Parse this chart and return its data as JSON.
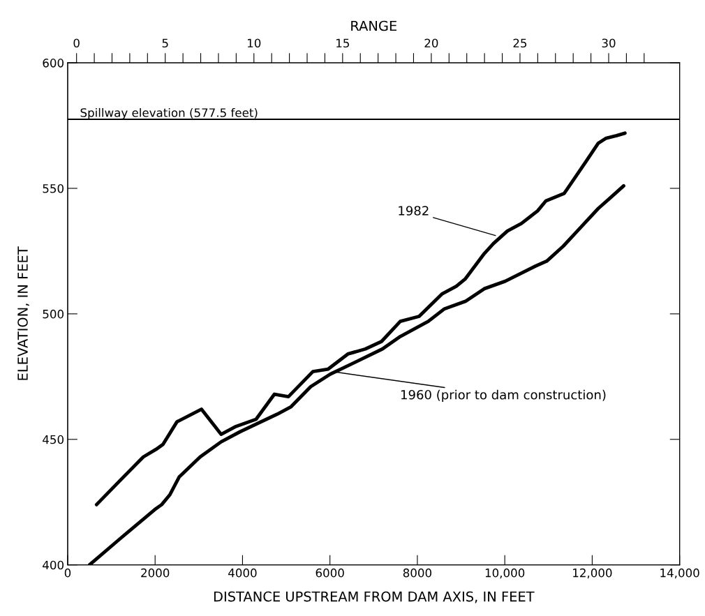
{
  "chart_data": {
    "type": "line",
    "xlabel": "DISTANCE UPSTREAM FROM DAM AXIS, IN FEET",
    "ylabel": "ELEVATION, IN FEET",
    "x2label": "RANGE",
    "xlim": [
      0,
      14000
    ],
    "ylim": [
      400,
      600
    ],
    "xticks": [
      0,
      2000,
      4000,
      6000,
      8000,
      {
        "value": 10000,
        "label": "10,000"
      },
      {
        "value": 12000,
        "label": "12,000"
      },
      {
        "value": 14000,
        "label": "14,000"
      }
    ],
    "yticks": [
      400,
      450,
      500,
      550,
      600
    ],
    "x2lim": [
      -0.5,
      34
    ],
    "x2ticks": [
      0,
      {
        "value": 1,
        "label": null
      },
      {
        "value": 2,
        "label": null
      },
      {
        "value": 3,
        "label": null
      },
      {
        "value": 4,
        "label": null
      },
      5,
      {
        "value": 6,
        "label": null
      },
      {
        "value": 7,
        "label": null
      },
      {
        "value": 8,
        "label": null
      },
      {
        "value": 9,
        "label": null
      },
      10,
      {
        "value": 11,
        "label": null
      },
      {
        "value": 12,
        "label": null
      },
      {
        "value": 13,
        "label": null
      },
      {
        "value": 14,
        "label": null
      },
      15,
      {
        "value": 16,
        "label": null
      },
      {
        "value": 17,
        "label": null
      },
      {
        "value": 18,
        "label": null
      },
      {
        "value": 19,
        "label": null
      },
      20,
      {
        "value": 21,
        "label": null
      },
      {
        "value": 22,
        "label": null
      },
      {
        "value": 23,
        "label": null
      },
      {
        "value": 24,
        "label": null
      },
      25,
      {
        "value": 26,
        "label": null
      },
      {
        "value": 27,
        "label": null
      },
      {
        "value": 28,
        "label": null
      },
      {
        "value": 29,
        "label": null
      },
      30,
      {
        "value": 31,
        "label": null
      },
      {
        "value": 32,
        "label": null
      }
    ],
    "series": [
      {
        "color": "#000000",
        "x": [
          660,
          1220,
          1730,
          2020,
          2180,
          2500,
          3060,
          3510,
          3830,
          4310,
          4730,
          5050,
          5610,
          5960,
          6410,
          6810,
          7180,
          7610,
          8040,
          8570,
          8890,
          9100,
          9530,
          9740,
          10060,
          10380,
          10750,
          10940,
          11360,
          11440,
          11870,
          12140,
          12320,
          12560,
          12750
        ],
        "values": [
          424,
          434,
          443,
          446,
          448,
          457,
          462,
          452,
          455,
          458,
          468,
          467,
          477,
          478,
          484,
          486,
          489,
          497,
          499,
          508,
          511,
          514,
          524,
          528,
          533,
          536,
          541,
          545,
          548,
          550,
          561,
          568,
          570,
          571,
          572
        ]
      },
      {
        "color": "#000000",
        "x": [
          500,
          1170,
          1990,
          2150,
          2340,
          2550,
          3030,
          3510,
          3940,
          4790,
          5110,
          5560,
          6010,
          6490,
          7200,
          7610,
          8250,
          8620,
          9100,
          9530,
          10010,
          10700,
          10960,
          11340,
          11660,
          12140,
          12400,
          12720
        ],
        "values": [
          400,
          410,
          422,
          424,
          428,
          435,
          443,
          449,
          453,
          460,
          463,
          471,
          476,
          480,
          486,
          491,
          497,
          502,
          505,
          510,
          513,
          519,
          521,
          527,
          533,
          542,
          546,
          551
        ]
      }
    ],
    "ref_lines": [
      {
        "axis": "y",
        "value": 577.5,
        "label": "Spillway elevation (577.5 feet)",
        "color": "#000000"
      }
    ],
    "annotations": [
      {
        "text": "1982",
        "x": 9830,
        "y": 531
      },
      {
        "text": "1960 (prior to dam construction)",
        "x": 6050,
        "y": 477
      }
    ],
    "line_style": "solid",
    "marker": "none",
    "grid": false
  }
}
